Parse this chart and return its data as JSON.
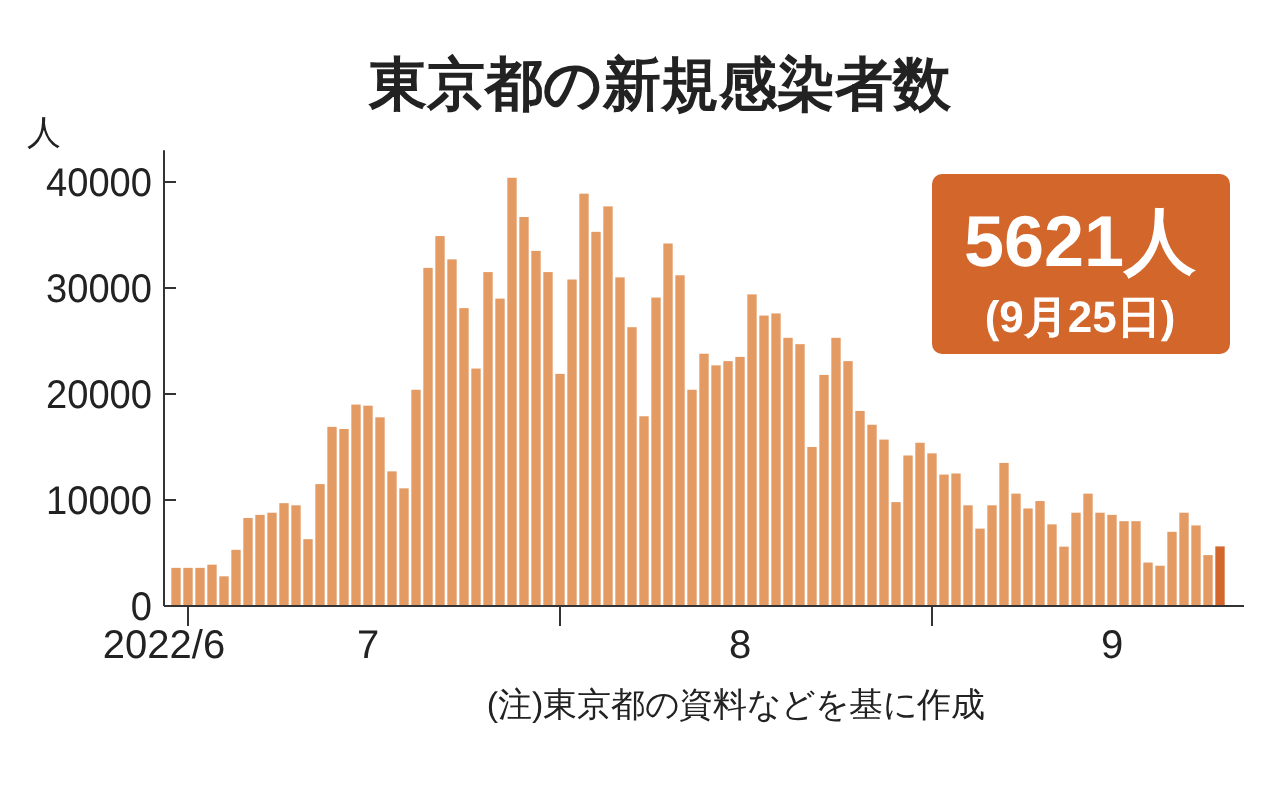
{
  "chart_data": {
    "type": "bar",
    "title": "東京都の新規感染者数",
    "ylabel": "人",
    "x": [
      "2022-06-30",
      "2022-07-01",
      "2022-07-02",
      "2022-07-03",
      "2022-07-04",
      "2022-07-05",
      "2022-07-06",
      "2022-07-07",
      "2022-07-08",
      "2022-07-09",
      "2022-07-10",
      "2022-07-11",
      "2022-07-12",
      "2022-07-13",
      "2022-07-14",
      "2022-07-15",
      "2022-07-16",
      "2022-07-17",
      "2022-07-18",
      "2022-07-19",
      "2022-07-20",
      "2022-07-21",
      "2022-07-22",
      "2022-07-23",
      "2022-07-24",
      "2022-07-25",
      "2022-07-26",
      "2022-07-27",
      "2022-07-28",
      "2022-07-29",
      "2022-07-30",
      "2022-07-31",
      "2022-08-01",
      "2022-08-02",
      "2022-08-03",
      "2022-08-04",
      "2022-08-05",
      "2022-08-06",
      "2022-08-07",
      "2022-08-08",
      "2022-08-09",
      "2022-08-10",
      "2022-08-11",
      "2022-08-12",
      "2022-08-13",
      "2022-08-14",
      "2022-08-15",
      "2022-08-16",
      "2022-08-17",
      "2022-08-18",
      "2022-08-19",
      "2022-08-20",
      "2022-08-21",
      "2022-08-22",
      "2022-08-23",
      "2022-08-24",
      "2022-08-25",
      "2022-08-26",
      "2022-08-27",
      "2022-08-28",
      "2022-08-29",
      "2022-08-30",
      "2022-08-31",
      "2022-09-01",
      "2022-09-02",
      "2022-09-03",
      "2022-09-04",
      "2022-09-05",
      "2022-09-06",
      "2022-09-07",
      "2022-09-08",
      "2022-09-09",
      "2022-09-10",
      "2022-09-11",
      "2022-09-12",
      "2022-09-13",
      "2022-09-14",
      "2022-09-15",
      "2022-09-16",
      "2022-09-17",
      "2022-09-18",
      "2022-09-19",
      "2022-09-20",
      "2022-09-21",
      "2022-09-22",
      "2022-09-23",
      "2022-09-24",
      "2022-09-25"
    ],
    "values": [
      3600,
      3600,
      3600,
      3900,
      2800,
      5300,
      8300,
      8600,
      8800,
      9700,
      9500,
      6300,
      11500,
      16900,
      16700,
      19000,
      18900,
      17800,
      12700,
      11100,
      20400,
      31900,
      34900,
      32700,
      28100,
      22400,
      31500,
      29000,
      40400,
      36700,
      33500,
      31500,
      21900,
      30800,
      38900,
      35300,
      37700,
      31000,
      26300,
      17900,
      29100,
      34200,
      31200,
      20400,
      23800,
      22700,
      23100,
      23500,
      29400,
      27400,
      27600,
      25300,
      24700,
      15000,
      21800,
      25300,
      23100,
      18400,
      17100,
      15700,
      9800,
      14200,
      15400,
      14400,
      12400,
      12500,
      9500,
      7300,
      9500,
      13500,
      10600,
      9200,
      9900,
      7700,
      5600,
      8800,
      10600,
      8800,
      8600,
      8000,
      8000,
      4100,
      3800,
      7000,
      8800,
      7600,
      4800,
      5621
    ],
    "colors": [
      "#e39a63",
      "#e39a63",
      "#e39a63",
      "#e39a63",
      "#e39a63",
      "#e39a63",
      "#e39a63",
      "#e39a63",
      "#e39a63",
      "#e39a63",
      "#e39a63",
      "#e39a63",
      "#e39a63",
      "#e39a63",
      "#e39a63",
      "#e39a63",
      "#e39a63",
      "#e39a63",
      "#e39a63",
      "#e39a63",
      "#e39a63",
      "#e39a63",
      "#e39a63",
      "#e39a63",
      "#e39a63",
      "#e39a63",
      "#e39a63",
      "#e39a63",
      "#e39a63",
      "#e39a63",
      "#e39a63",
      "#e39a63",
      "#e39a63",
      "#e39a63",
      "#e39a63",
      "#e39a63",
      "#e39a63",
      "#e39a63",
      "#e39a63",
      "#e39a63",
      "#e39a63",
      "#e39a63",
      "#e39a63",
      "#e39a63",
      "#e39a63",
      "#e39a63",
      "#e39a63",
      "#e39a63",
      "#e39a63",
      "#e39a63",
      "#e39a63",
      "#e39a63",
      "#e39a63",
      "#e39a63",
      "#e39a63",
      "#e39a63",
      "#e39a63",
      "#e39a63",
      "#e39a63",
      "#e39a63",
      "#e39a63",
      "#e39a63",
      "#e39a63",
      "#e39a63",
      "#e39a63",
      "#e39a63",
      "#e39a63",
      "#e39a63",
      "#e39a63",
      "#e39a63",
      "#e39a63",
      "#e39a63",
      "#e39a63",
      "#e39a63",
      "#e39a63",
      "#e39a63",
      "#e39a63",
      "#e39a63",
      "#e39a63",
      "#e39a63",
      "#e39a63",
      "#e39a63",
      "#e39a63",
      "#e39a63",
      "#e39a63",
      "#e39a63",
      "#e39a63",
      "#d2662b"
    ],
    "xlim": [
      "2022-06-29",
      "2022-09-27"
    ],
    "xticks": [
      {
        "value": "2022-06-29",
        "label": "2022/6"
      },
      {
        "value": "2022-07-01",
        "label": null
      },
      {
        "value": "2022-07-16",
        "label": "7"
      },
      {
        "value": "2022-08-01",
        "label": null
      },
      {
        "value": "2022-08-16",
        "label": "8"
      },
      {
        "value": "2022-09-01",
        "label": null
      },
      {
        "value": "2022-09-16",
        "label": "9"
      }
    ],
    "ylim": [
      0,
      43000
    ],
    "yticks": [
      0,
      10000,
      20000,
      30000,
      40000
    ],
    "annotations": [
      "5621人",
      "(9月25日)",
      "(注)東京都の資料などを基に作成"
    ]
  }
}
